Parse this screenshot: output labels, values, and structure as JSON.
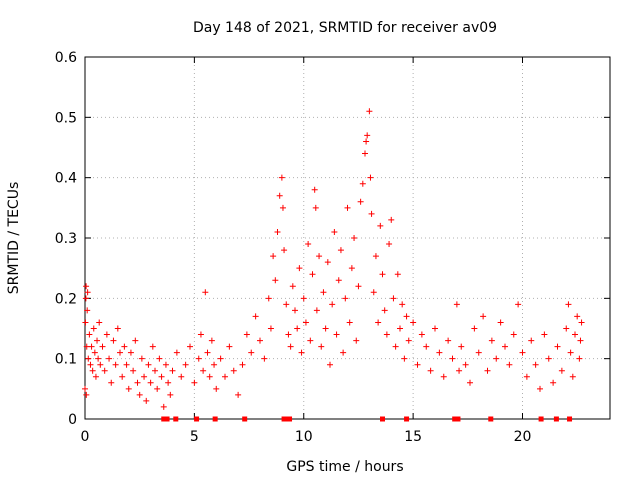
{
  "chart_data": {
    "type": "scatter",
    "title": "Day 148 of 2021, SRMTID for receiver av09",
    "xlabel": "GPS time / hours",
    "ylabel": "SRMTID / TECUs",
    "xlim": [
      0,
      24
    ],
    "ylim": [
      0,
      0.6
    ],
    "xticks": [
      0,
      5,
      10,
      15,
      20
    ],
    "yticks": [
      0,
      0.1,
      0.2,
      0.3,
      0.4,
      0.5,
      0.6
    ],
    "xtick_labels": [
      "0",
      "5",
      "10",
      "15",
      "20"
    ],
    "ytick_labels": [
      "0",
      "0.1",
      "0.2",
      "0.3",
      "0.4",
      "0.5",
      "0.6"
    ],
    "grid": true,
    "marker": "+",
    "series_color": "#ff0000",
    "series": [
      {
        "name": "SRMTID",
        "points": [
          [
            0.0,
            0.05
          ],
          [
            0.02,
            0.16
          ],
          [
            0.04,
            0.2
          ],
          [
            0.05,
            0.22
          ],
          [
            0.06,
            0.04
          ],
          [
            0.08,
            0.12
          ],
          [
            0.1,
            0.18
          ],
          [
            0.12,
            0.21
          ],
          [
            0.15,
            0.1
          ],
          [
            0.2,
            0.14
          ],
          [
            0.25,
            0.09
          ],
          [
            0.3,
            0.12
          ],
          [
            0.35,
            0.08
          ],
          [
            0.4,
            0.15
          ],
          [
            0.45,
            0.11
          ],
          [
            0.5,
            0.07
          ],
          [
            0.55,
            0.13
          ],
          [
            0.6,
            0.1
          ],
          [
            0.65,
            0.16
          ],
          [
            0.7,
            0.09
          ],
          [
            0.8,
            0.12
          ],
          [
            0.9,
            0.08
          ],
          [
            1.0,
            0.14
          ],
          [
            1.1,
            0.1
          ],
          [
            1.2,
            0.06
          ],
          [
            1.3,
            0.13
          ],
          [
            1.4,
            0.09
          ],
          [
            1.5,
            0.15
          ],
          [
            1.6,
            0.11
          ],
          [
            1.7,
            0.07
          ],
          [
            1.8,
            0.12
          ],
          [
            1.9,
            0.09
          ],
          [
            2.0,
            0.05
          ],
          [
            2.1,
            0.11
          ],
          [
            2.2,
            0.08
          ],
          [
            2.3,
            0.13
          ],
          [
            2.4,
            0.06
          ],
          [
            2.5,
            0.04
          ],
          [
            2.6,
            0.1
          ],
          [
            2.7,
            0.07
          ],
          [
            2.8,
            0.03
          ],
          [
            2.9,
            0.09
          ],
          [
            3.0,
            0.06
          ],
          [
            3.1,
            0.12
          ],
          [
            3.2,
            0.08
          ],
          [
            3.3,
            0.05
          ],
          [
            3.4,
            0.1
          ],
          [
            3.5,
            0.07
          ],
          [
            3.6,
            0.02
          ],
          [
            3.7,
            0.09
          ],
          [
            3.8,
            0.06
          ],
          [
            3.9,
            0.04
          ],
          [
            4.0,
            0.08
          ],
          [
            4.2,
            0.11
          ],
          [
            4.4,
            0.07
          ],
          [
            4.6,
            0.09
          ],
          [
            4.8,
            0.12
          ],
          [
            5.0,
            0.06
          ],
          [
            5.2,
            0.1
          ],
          [
            5.3,
            0.14
          ],
          [
            5.4,
            0.08
          ],
          [
            5.5,
            0.21
          ],
          [
            5.6,
            0.11
          ],
          [
            5.7,
            0.07
          ],
          [
            5.8,
            0.13
          ],
          [
            5.9,
            0.09
          ],
          [
            6.0,
            0.05
          ],
          [
            6.2,
            0.1
          ],
          [
            6.4,
            0.07
          ],
          [
            6.6,
            0.12
          ],
          [
            6.8,
            0.08
          ],
          [
            7.0,
            0.04
          ],
          [
            7.2,
            0.09
          ],
          [
            7.4,
            0.14
          ],
          [
            7.6,
            0.11
          ],
          [
            7.8,
            0.17
          ],
          [
            8.0,
            0.13
          ],
          [
            8.2,
            0.1
          ],
          [
            8.4,
            0.2
          ],
          [
            8.5,
            0.15
          ],
          [
            8.6,
            0.27
          ],
          [
            8.7,
            0.23
          ],
          [
            8.8,
            0.31
          ],
          [
            8.9,
            0.37
          ],
          [
            9.0,
            0.4
          ],
          [
            9.05,
            0.35
          ],
          [
            9.1,
            0.28
          ],
          [
            9.2,
            0.19
          ],
          [
            9.3,
            0.14
          ],
          [
            9.4,
            0.12
          ],
          [
            9.5,
            0.22
          ],
          [
            9.6,
            0.18
          ],
          [
            9.7,
            0.15
          ],
          [
            9.8,
            0.25
          ],
          [
            9.9,
            0.11
          ],
          [
            10.0,
            0.2
          ],
          [
            10.1,
            0.16
          ],
          [
            10.2,
            0.29
          ],
          [
            10.3,
            0.13
          ],
          [
            10.4,
            0.24
          ],
          [
            10.5,
            0.38
          ],
          [
            10.55,
            0.35
          ],
          [
            10.6,
            0.18
          ],
          [
            10.7,
            0.27
          ],
          [
            10.8,
            0.12
          ],
          [
            10.9,
            0.21
          ],
          [
            11.0,
            0.15
          ],
          [
            11.1,
            0.26
          ],
          [
            11.2,
            0.09
          ],
          [
            11.3,
            0.19
          ],
          [
            11.4,
            0.31
          ],
          [
            11.5,
            0.14
          ],
          [
            11.6,
            0.23
          ],
          [
            11.7,
            0.28
          ],
          [
            11.8,
            0.11
          ],
          [
            11.9,
            0.2
          ],
          [
            12.0,
            0.35
          ],
          [
            12.1,
            0.16
          ],
          [
            12.2,
            0.25
          ],
          [
            12.3,
            0.3
          ],
          [
            12.4,
            0.13
          ],
          [
            12.5,
            0.22
          ],
          [
            12.6,
            0.36
          ],
          [
            12.7,
            0.39
          ],
          [
            12.8,
            0.44
          ],
          [
            12.85,
            0.46
          ],
          [
            12.9,
            0.47
          ],
          [
            13.0,
            0.51
          ],
          [
            13.05,
            0.4
          ],
          [
            13.1,
            0.34
          ],
          [
            13.2,
            0.21
          ],
          [
            13.3,
            0.27
          ],
          [
            13.4,
            0.16
          ],
          [
            13.5,
            0.32
          ],
          [
            13.6,
            0.24
          ],
          [
            13.7,
            0.18
          ],
          [
            13.8,
            0.14
          ],
          [
            13.9,
            0.29
          ],
          [
            14.0,
            0.33
          ],
          [
            14.1,
            0.2
          ],
          [
            14.2,
            0.12
          ],
          [
            14.3,
            0.24
          ],
          [
            14.4,
            0.15
          ],
          [
            14.5,
            0.19
          ],
          [
            14.6,
            0.1
          ],
          [
            14.7,
            0.17
          ],
          [
            14.8,
            0.13
          ],
          [
            15.0,
            0.16
          ],
          [
            15.2,
            0.09
          ],
          [
            15.4,
            0.14
          ],
          [
            15.6,
            0.12
          ],
          [
            15.8,
            0.08
          ],
          [
            16.0,
            0.15
          ],
          [
            16.2,
            0.11
          ],
          [
            16.4,
            0.07
          ],
          [
            16.6,
            0.13
          ],
          [
            16.8,
            0.1
          ],
          [
            17.0,
            0.19
          ],
          [
            17.1,
            0.08
          ],
          [
            17.2,
            0.12
          ],
          [
            17.4,
            0.09
          ],
          [
            17.6,
            0.06
          ],
          [
            17.8,
            0.15
          ],
          [
            18.0,
            0.11
          ],
          [
            18.2,
            0.17
          ],
          [
            18.4,
            0.08
          ],
          [
            18.6,
            0.13
          ],
          [
            18.8,
            0.1
          ],
          [
            19.0,
            0.16
          ],
          [
            19.2,
            0.12
          ],
          [
            19.4,
            0.09
          ],
          [
            19.6,
            0.14
          ],
          [
            19.8,
            0.19
          ],
          [
            20.0,
            0.11
          ],
          [
            20.2,
            0.07
          ],
          [
            20.4,
            0.13
          ],
          [
            20.6,
            0.09
          ],
          [
            20.8,
            0.05
          ],
          [
            21.0,
            0.14
          ],
          [
            21.2,
            0.1
          ],
          [
            21.4,
            0.06
          ],
          [
            21.6,
            0.12
          ],
          [
            21.8,
            0.08
          ],
          [
            22.0,
            0.15
          ],
          [
            22.1,
            0.19
          ],
          [
            22.2,
            0.11
          ],
          [
            22.3,
            0.07
          ],
          [
            22.4,
            0.14
          ],
          [
            22.5,
            0.17
          ],
          [
            22.6,
            0.1
          ],
          [
            22.65,
            0.13
          ],
          [
            22.7,
            0.16
          ]
        ],
        "baseline_points": [
          3.6,
          3.65,
          3.75,
          4.15,
          5.1,
          5.95,
          7.3,
          9.1,
          9.25,
          9.35,
          13.6,
          14.7,
          16.9,
          17.05,
          18.55,
          20.85,
          21.55,
          22.15
        ]
      }
    ]
  }
}
